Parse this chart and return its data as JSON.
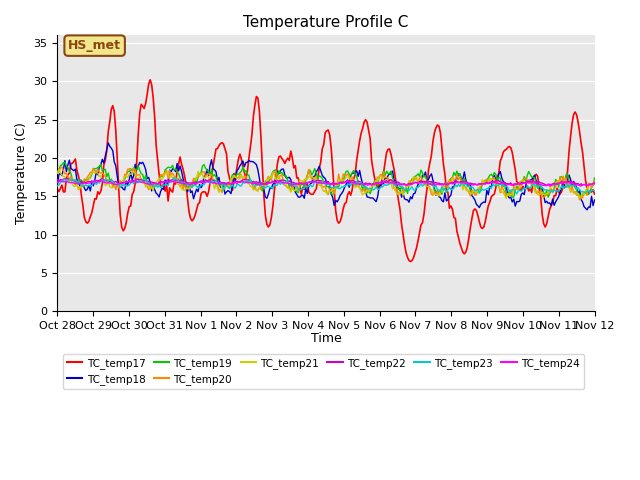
{
  "title": "Temperature Profile C",
  "xlabel": "Time",
  "ylabel": "Temperature (C)",
  "ylim": [
    0,
    36
  ],
  "yticks": [
    0,
    5,
    10,
    15,
    20,
    25,
    30,
    35
  ],
  "background_color": "#ffffff",
  "plot_bg_color": "#e8e8e8",
  "annotation_text": "HS_met",
  "annotation_color": "#8B4513",
  "annotation_bg": "#f0e68c",
  "series": [
    {
      "name": "TC_temp17",
      "color": "#ff0000",
      "lw": 1.2
    },
    {
      "name": "TC_temp18",
      "color": "#0000cc",
      "lw": 1.0
    },
    {
      "name": "TC_temp19",
      "color": "#00cc00",
      "lw": 1.0
    },
    {
      "name": "TC_temp20",
      "color": "#ff8800",
      "lw": 1.0
    },
    {
      "name": "TC_temp21",
      "color": "#cccc00",
      "lw": 1.0
    },
    {
      "name": "TC_temp22",
      "color": "#cc00cc",
      "lw": 1.0
    },
    {
      "name": "TC_temp23",
      "color": "#00cccc",
      "lw": 1.0
    },
    {
      "name": "TC_temp24",
      "color": "#ff00ff",
      "lw": 1.0
    }
  ],
  "x_tick_labels": [
    "Oct 28",
    "Oct 29",
    "Oct 30",
    "Oct 31",
    "Nov 1",
    "Nov 2",
    "Nov 3",
    "Nov 4",
    "Nov 5",
    "Nov 6",
    "Nov 7",
    "Nov 8",
    "Nov 9",
    "Nov 10",
    "Nov 11",
    "Nov 12"
  ],
  "n_days": 15,
  "pts_per_day": 24
}
